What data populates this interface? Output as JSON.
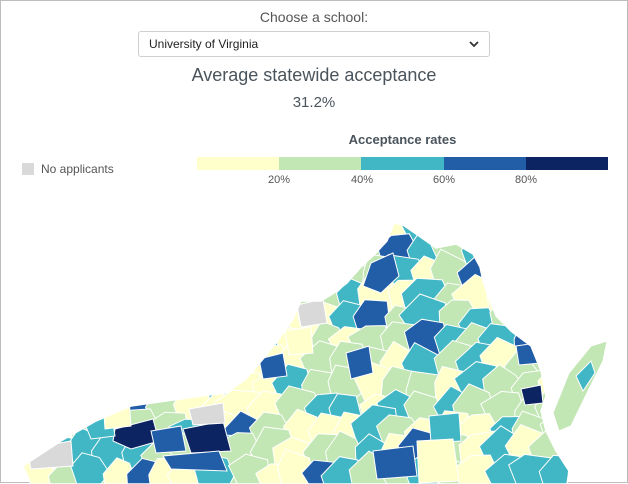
{
  "selector": {
    "label": "Choose a school:",
    "selected": "University of Virginia"
  },
  "summary": {
    "title": "Average statewide acceptance",
    "value": "31.2%"
  },
  "legend": {
    "title": "Acceptance rates",
    "no_data_label": "No applicants",
    "no_data_color": "#d9d9d9",
    "bins": [
      "#ffffcc",
      "#c2e6b4",
      "#41b6c4",
      "#225ea8",
      "#0c2461"
    ],
    "ticks": [
      "20%",
      "40%",
      "60%",
      "80%"
    ]
  },
  "map": {
    "region": "Virginia",
    "border_color": "#ffffff"
  }
}
